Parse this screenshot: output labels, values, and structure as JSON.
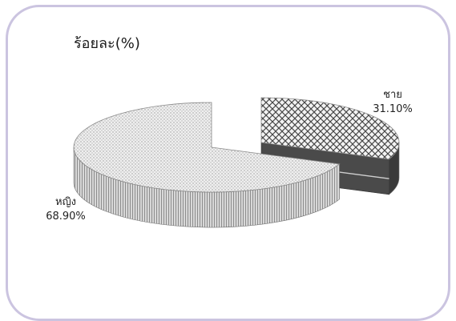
{
  "chart_data": {
    "type": "pie",
    "title": "ร้อยละ(%)",
    "categories": [
      "ชาย",
      "หญิง"
    ],
    "values": [
      31.1,
      68.9
    ],
    "value_labels": [
      "31.10%",
      "68.90%"
    ],
    "style": "3d-exploded",
    "colors": {
      "male_top": "#bdbdbd",
      "male_side": "#3a3a3a",
      "female_top": "#ececec",
      "female_side": "#b0b0b0",
      "frame": "#cbc4e0"
    }
  }
}
